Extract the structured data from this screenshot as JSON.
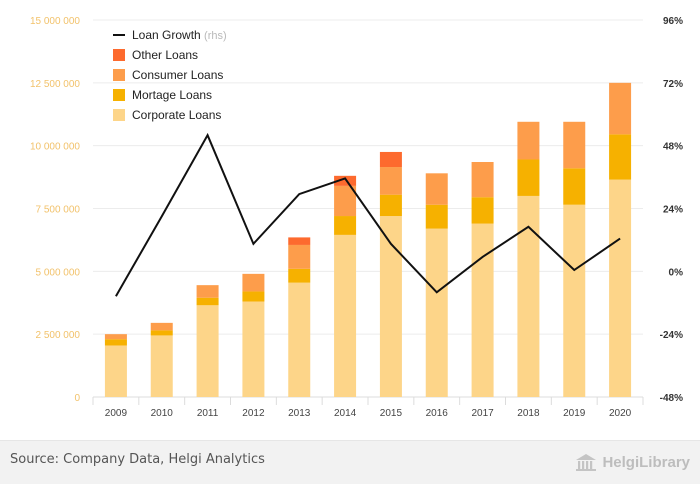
{
  "chart_data": {
    "type": "bar",
    "stacked": true,
    "categories": [
      "2009",
      "2010",
      "2011",
      "2012",
      "2013",
      "2014",
      "2015",
      "2016",
      "2017",
      "2018",
      "2019",
      "2020"
    ],
    "series": [
      {
        "name": "Corporate Loans",
        "color": "#fdd589",
        "values": [
          2050000,
          2450000,
          3650000,
          3800000,
          4550000,
          6450000,
          7200000,
          6700000,
          6900000,
          8000000,
          7650000,
          8650000
        ]
      },
      {
        "name": "Mortage Loans",
        "color": "#f6b100",
        "values": [
          250000,
          200000,
          300000,
          400000,
          550000,
          750000,
          850000,
          950000,
          1050000,
          1450000,
          1450000,
          1800000
        ]
      },
      {
        "name": "Consumer Loans",
        "color": "#fd9d4b",
        "values": [
          200000,
          300000,
          500000,
          700000,
          950000,
          1200000,
          1100000,
          1250000,
          1400000,
          1500000,
          1850000,
          2050000
        ]
      },
      {
        "name": "Other Loans",
        "color": "#fd6a2e",
        "values": [
          0,
          0,
          0,
          0,
          300000,
          400000,
          600000,
          0,
          0,
          0,
          0,
          0
        ]
      }
    ],
    "line": {
      "name": "Loan Growth",
      "suffix": "(rhs)",
      "color": "#111111",
      "values": [
        -9.5,
        21,
        52,
        10.5,
        29.5,
        35.5,
        10.5,
        -8,
        5.5,
        17,
        0.5,
        12.5
      ]
    },
    "ylim_left": [
      0,
      15000000
    ],
    "yticks_left": [
      "0",
      "2 500 000",
      "5 000 000",
      "7 500 000",
      "10 000 000",
      "12 500 000",
      "15 000 000"
    ],
    "ylim_right": [
      -48,
      96
    ],
    "yticks_right": [
      "-48%",
      "-24%",
      "0%",
      "24%",
      "48%",
      "72%",
      "96%"
    ],
    "legend_position": "top-left",
    "grid": true
  },
  "footer": {
    "source": "Source: Company Data, Helgi Analytics",
    "logo_text": "HelgiLibrary"
  }
}
